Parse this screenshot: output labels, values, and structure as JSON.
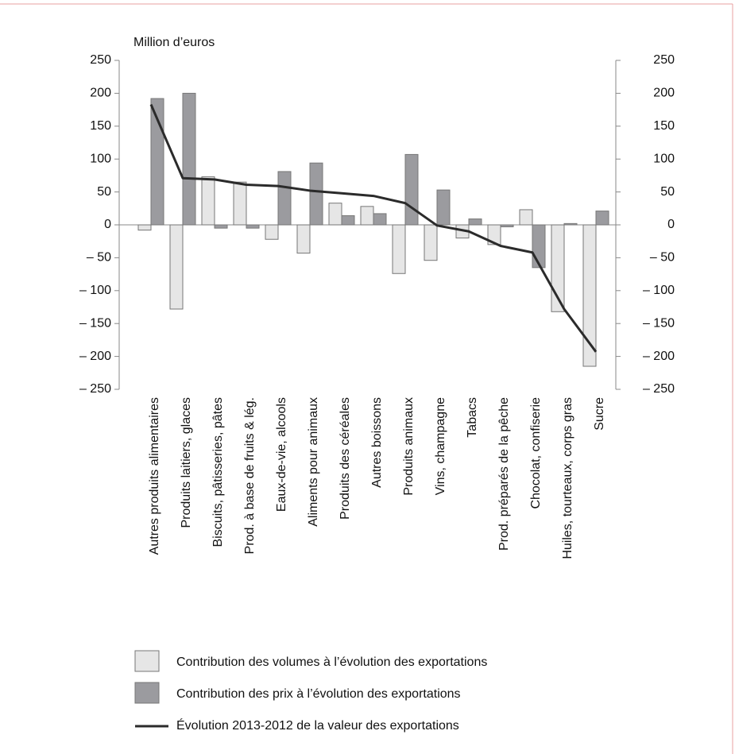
{
  "chart_data": {
    "type": "bar",
    "y_axis_label": "Million d’euros",
    "categories": [
      "Autres produits alimentaires",
      "Produits laitiers, glaces",
      "Biscuits, pâtisseries, pâtes",
      "Prod. à base de fruits & lég.",
      "Eaux-de-vie, alcools",
      "Aliments pour animaux",
      "Produits des céréales",
      "Autres boissons",
      "Produits animaux",
      "Vins, champagne",
      "Tabacs",
      "Prod. préparés de la pêche",
      "Chocolat, confiserie",
      "Huiles, tourteaux, corps gras",
      "Sucre"
    ],
    "series": [
      {
        "name": "Contribution des volumes à l’évolution des exportations",
        "type": "bar",
        "color": "#e6e6e6",
        "values": [
          -8,
          -128,
          73,
          65,
          -22,
          -43,
          33,
          28,
          -74,
          -54,
          -20,
          -30,
          23,
          -132,
          -215
        ]
      },
      {
        "name": "Contribution des prix à l’évolution des exportations",
        "type": "bar",
        "color": "#9b9b9f",
        "values": [
          192,
          200,
          -5,
          -5,
          81,
          94,
          14,
          17,
          107,
          53,
          9,
          -3,
          -65,
          2,
          21
        ]
      },
      {
        "name": "Évolution 2013-2012 de la valeur des exportations",
        "type": "line",
        "color": "#2b2b2b",
        "values": [
          183,
          71,
          69,
          61,
          59,
          52,
          48,
          44,
          33,
          -1,
          -10,
          -32,
          -42,
          -128,
          -193
        ]
      }
    ],
    "ylim": [
      -250,
      250
    ],
    "yticks": [
      250,
      200,
      150,
      100,
      50,
      0,
      {
        "value": -50,
        "label": "– 50"
      },
      {
        "value": -100,
        "label": "– 100"
      },
      {
        "value": -150,
        "label": "– 150"
      },
      {
        "value": -200,
        "label": "– 200"
      },
      {
        "value": -250,
        "label": "– 250"
      }
    ],
    "y2lim": [
      -250,
      250
    ],
    "y2ticks": [
      250,
      200,
      150,
      100,
      50,
      0,
      {
        "value": -50,
        "label": "– 50"
      },
      {
        "value": -100,
        "label": "– 100"
      },
      {
        "value": -150,
        "label": "– 150"
      },
      {
        "value": -200,
        "label": "– 200"
      },
      {
        "value": -250,
        "label": "– 250"
      }
    ]
  }
}
